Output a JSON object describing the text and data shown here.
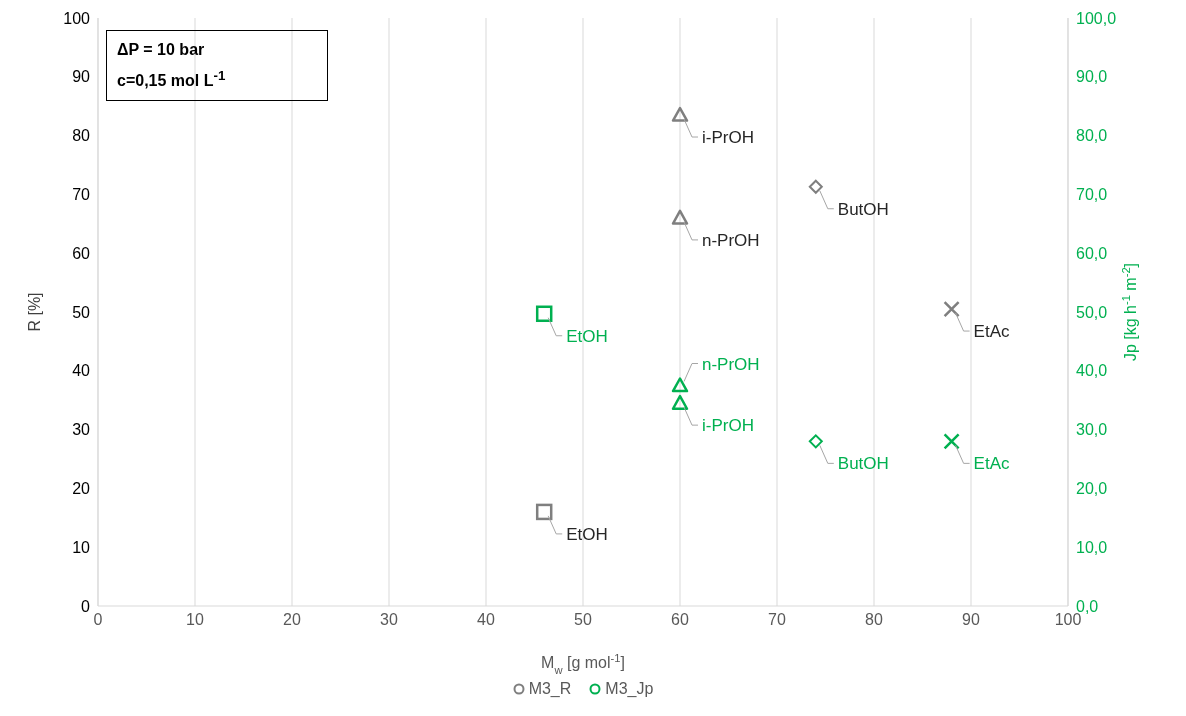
{
  "chart_data": {
    "type": "scatter",
    "xlabel": "M$_{w}$ [g mol$^{-1}$]",
    "ylabel": "R [%]",
    "y2label": "Jp [kg h$^{-1}$ m$^{-2}$]",
    "annotations": [
      "ΔP = 10 bar",
      "c=0,15 mol L$^{-1}$"
    ],
    "xlim": [
      0,
      100
    ],
    "xticks": [
      0,
      10,
      20,
      30,
      40,
      50,
      60,
      70,
      80,
      90,
      100
    ],
    "ylim": [
      0,
      100
    ],
    "yticks": [
      0,
      10,
      20,
      30,
      40,
      50,
      60,
      70,
      80,
      90,
      100
    ],
    "y2lim": [
      0,
      100
    ],
    "y2ticks": [
      {
        "value": 0,
        "label": "0,0"
      },
      {
        "value": 10,
        "label": "10,0"
      },
      {
        "value": 20,
        "label": "20,0"
      },
      {
        "value": 30,
        "label": "30,0"
      },
      {
        "value": 40,
        "label": "40,0"
      },
      {
        "value": 50,
        "label": "50,0"
      },
      {
        "value": 60,
        "label": "60,0"
      },
      {
        "value": 70,
        "label": "70,0"
      },
      {
        "value": 80,
        "label": "80,0"
      },
      {
        "value": 90,
        "label": "90,0"
      },
      {
        "value": 100,
        "label": "100,0"
      }
    ],
    "grid": true,
    "legend": "bottom",
    "series": [
      {
        "name": "M3_R",
        "color": "#7f7f7f",
        "x": [
          46,
          60,
          60,
          74,
          88
        ],
        "values": [
          16,
          66,
          83.5,
          71.3,
          50.5
        ],
        "marker": [
          "square",
          "triangle",
          "triangle",
          "diamond",
          "cross"
        ],
        "value_labels": [
          "EtOH",
          "n-PrOH",
          "i-PrOH",
          "ButOH",
          "EtAc"
        ]
      },
      {
        "name": "M3_Jp",
        "color": "#00b050",
        "axis": "y2",
        "x": [
          46,
          60,
          60,
          74,
          88
        ],
        "values": [
          49.7,
          37.5,
          34.5,
          28,
          28
        ],
        "marker": [
          "square",
          "triangle",
          "triangle",
          "diamond",
          "cross"
        ],
        "value_labels": [
          "EtOH",
          "n-PrOH",
          "i-PrOH",
          "ButOH",
          "EtAc"
        ]
      }
    ]
  }
}
